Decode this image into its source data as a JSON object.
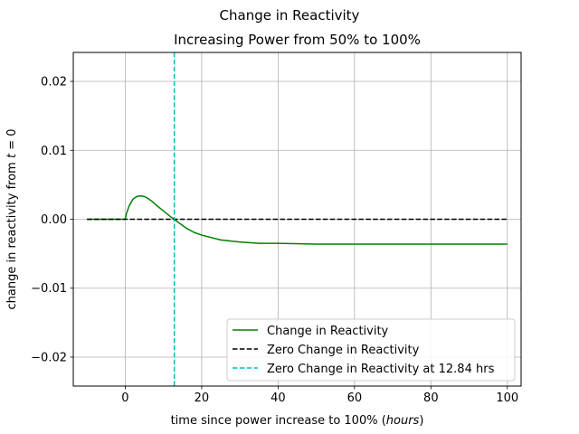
{
  "chart_data": {
    "type": "line",
    "suptitle": "Change in Reactivity",
    "title": "Increasing Power from 50% to 100%",
    "xlabel_main": "time since power increase to 100% (",
    "xlabel_unit": "hours",
    "xlabel_close": ")",
    "ylabel_main": "change in reactivity from ",
    "ylabel_var": "t",
    "ylabel_tail": " = 0",
    "xlim": [
      -13.6,
      103.6
    ],
    "ylim": [
      -0.0242,
      0.0242
    ],
    "xticks": [
      0,
      20,
      40,
      60,
      80,
      100
    ],
    "xtick_labels": [
      "0",
      "20",
      "40",
      "60",
      "80",
      "100"
    ],
    "yticks": [
      -0.02,
      -0.01,
      0.0,
      0.01,
      0.02
    ],
    "ytick_labels": [
      "−0.02",
      "−0.01",
      "0.00",
      "0.01",
      "0.02"
    ],
    "grid": true,
    "legend_position": "lower-right",
    "series": [
      {
        "name": "Change in Reactivity",
        "color": "#008000",
        "style": "solid",
        "x": [
          -10,
          -5,
          0,
          0.3,
          1,
          2,
          3,
          4,
          5,
          6,
          7,
          8,
          10,
          12,
          12.84,
          14,
          16,
          18,
          20,
          25,
          30,
          35,
          40,
          50,
          60,
          70,
          80,
          90,
          100
        ],
        "y": [
          0.0,
          0.0,
          0.0,
          0.0008,
          0.0019,
          0.0029,
          0.0033,
          0.0034,
          0.0033,
          0.003,
          0.0026,
          0.0021,
          0.0012,
          0.0003,
          0.0,
          -0.0005,
          -0.0013,
          -0.0019,
          -0.0023,
          -0.003,
          -0.0033,
          -0.0035,
          -0.0035,
          -0.0036,
          -0.0036,
          -0.0036,
          -0.0036,
          -0.0036,
          -0.0036
        ]
      },
      {
        "name": "Zero Change in Reactivity",
        "color": "#000000",
        "style": "dashed",
        "x": [
          -10,
          100
        ],
        "y": [
          0.0,
          0.0
        ]
      }
    ],
    "vlines": [
      {
        "name": "Zero Change in Reactivity at 12.84 hrs",
        "color": "#00bfbf",
        "style": "dashed",
        "x": 12.84
      }
    ]
  }
}
